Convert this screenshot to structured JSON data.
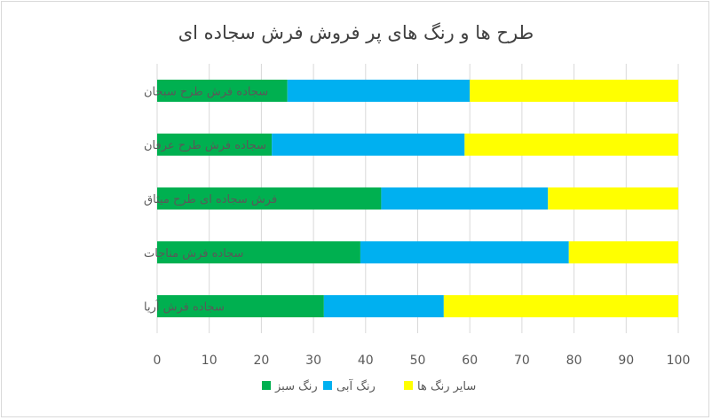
{
  "chart_data": {
    "type": "bar",
    "orientation": "horizontal",
    "stacked": true,
    "title": "طرح ها و رنگ های پر فروش فرش سجاده ای",
    "categories": [
      "سجاده فرش طرح سبحان",
      "سجاده فرش طرح عرفان",
      "فرش سجاده ای طرح میثاق",
      "سجاده فرش مناجات",
      "سجاده فرش آریا"
    ],
    "series": [
      {
        "name": "رنگ سبز",
        "color": "#00b050",
        "values": [
          25,
          22,
          43,
          39,
          32
        ]
      },
      {
        "name": "رنگ آبی",
        "color": "#00b0f0",
        "values": [
          35,
          37,
          32,
          40,
          23
        ]
      },
      {
        "name": "سایر رنگ ها",
        "color": "#ffff00",
        "values": [
          40,
          41,
          25,
          21,
          45
        ]
      }
    ],
    "xlim": [
      0,
      100
    ],
    "xticks": [
      0,
      10,
      20,
      30,
      40,
      50,
      60,
      70,
      80,
      90,
      100
    ],
    "grid": true,
    "legend": "bottom"
  }
}
